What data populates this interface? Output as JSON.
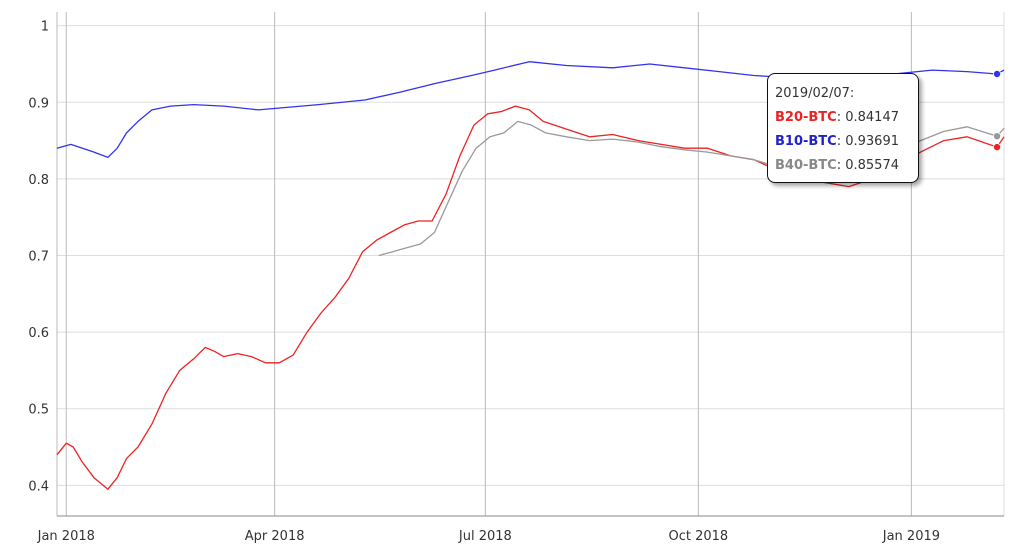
{
  "chart_data": {
    "type": "line",
    "x_tick_labels": [
      "Jan 2018",
      "Apr 2018",
      "Jul 2018",
      "Oct 2018",
      "Jan 2019"
    ],
    "x_ticks": [
      "2018-01-01",
      "2018-04-01",
      "2018-07-01",
      "2018-10-01",
      "2019-01-01"
    ],
    "xlim": [
      "2017-12-28",
      "2019-02-10"
    ],
    "y_tick_labels": [
      "0.4",
      "0.5",
      "0.6",
      "0.7",
      "0.8",
      "0.9",
      "1"
    ],
    "y_ticks": [
      0.4,
      0.5,
      0.6,
      0.7,
      0.8,
      0.9,
      1.0
    ],
    "ylim": [
      0.36,
      1.01
    ],
    "grid": true,
    "legend": "none",
    "series": [
      {
        "name": "B10-BTC",
        "color": "#3333ee",
        "points": [
          [
            "2017-12-28",
            0.84
          ],
          [
            "2018-01-03",
            0.845
          ],
          [
            "2018-01-08",
            0.84
          ],
          [
            "2018-01-13",
            0.835
          ],
          [
            "2018-01-19",
            0.828
          ],
          [
            "2018-01-23",
            0.84
          ],
          [
            "2018-01-27",
            0.86
          ],
          [
            "2018-02-01",
            0.875
          ],
          [
            "2018-02-07",
            0.89
          ],
          [
            "2018-02-15",
            0.895
          ],
          [
            "2018-02-25",
            0.897
          ],
          [
            "2018-03-10",
            0.895
          ],
          [
            "2018-03-25",
            0.89
          ],
          [
            "2018-04-05",
            0.893
          ],
          [
            "2018-04-20",
            0.897
          ],
          [
            "2018-05-10",
            0.903
          ],
          [
            "2018-05-25",
            0.913
          ],
          [
            "2018-06-10",
            0.925
          ],
          [
            "2018-06-25",
            0.935
          ],
          [
            "2018-07-05",
            0.942
          ],
          [
            "2018-07-20",
            0.953
          ],
          [
            "2018-08-05",
            0.948
          ],
          [
            "2018-08-25",
            0.945
          ],
          [
            "2018-09-10",
            0.95
          ],
          [
            "2018-09-25",
            0.945
          ],
          [
            "2018-10-10",
            0.94
          ],
          [
            "2018-10-25",
            0.935
          ],
          [
            "2018-11-10",
            0.932
          ],
          [
            "2018-11-25",
            0.93
          ],
          [
            "2018-12-10",
            0.933
          ],
          [
            "2018-12-25",
            0.937
          ],
          [
            "2019-01-10",
            0.942
          ],
          [
            "2019-01-25",
            0.94
          ],
          [
            "2019-02-07",
            0.93691
          ],
          [
            "2019-02-10",
            0.942
          ]
        ]
      },
      {
        "name": "B20-BTC",
        "color": "#ee2222",
        "points": [
          [
            "2017-12-28",
            0.44
          ],
          [
            "2018-01-01",
            0.455
          ],
          [
            "2018-01-04",
            0.45
          ],
          [
            "2018-01-08",
            0.43
          ],
          [
            "2018-01-13",
            0.41
          ],
          [
            "2018-01-19",
            0.395
          ],
          [
            "2018-01-23",
            0.41
          ],
          [
            "2018-01-27",
            0.435
          ],
          [
            "2018-02-01",
            0.45
          ],
          [
            "2018-02-07",
            0.48
          ],
          [
            "2018-02-13",
            0.52
          ],
          [
            "2018-02-19",
            0.55
          ],
          [
            "2018-02-25",
            0.565
          ],
          [
            "2018-03-02",
            0.58
          ],
          [
            "2018-03-06",
            0.575
          ],
          [
            "2018-03-10",
            0.568
          ],
          [
            "2018-03-16",
            0.572
          ],
          [
            "2018-03-22",
            0.568
          ],
          [
            "2018-03-28",
            0.56
          ],
          [
            "2018-04-03",
            0.56
          ],
          [
            "2018-04-09",
            0.57
          ],
          [
            "2018-04-15",
            0.6
          ],
          [
            "2018-04-21",
            0.625
          ],
          [
            "2018-04-27",
            0.645
          ],
          [
            "2018-05-03",
            0.67
          ],
          [
            "2018-05-09",
            0.705
          ],
          [
            "2018-05-15",
            0.72
          ],
          [
            "2018-05-21",
            0.73
          ],
          [
            "2018-05-27",
            0.74
          ],
          [
            "2018-06-02",
            0.745
          ],
          [
            "2018-06-08",
            0.745
          ],
          [
            "2018-06-14",
            0.78
          ],
          [
            "2018-06-20",
            0.83
          ],
          [
            "2018-06-26",
            0.87
          ],
          [
            "2018-07-02",
            0.885
          ],
          [
            "2018-07-08",
            0.888
          ],
          [
            "2018-07-14",
            0.895
          ],
          [
            "2018-07-20",
            0.89
          ],
          [
            "2018-07-26",
            0.875
          ],
          [
            "2018-08-05",
            0.865
          ],
          [
            "2018-08-15",
            0.855
          ],
          [
            "2018-08-25",
            0.858
          ],
          [
            "2018-09-05",
            0.85
          ],
          [
            "2018-09-15",
            0.845
          ],
          [
            "2018-09-25",
            0.84
          ],
          [
            "2018-10-05",
            0.84
          ],
          [
            "2018-10-15",
            0.83
          ],
          [
            "2018-10-25",
            0.825
          ],
          [
            "2018-11-05",
            0.81
          ],
          [
            "2018-11-15",
            0.8
          ],
          [
            "2018-11-25",
            0.795
          ],
          [
            "2018-12-05",
            0.79
          ],
          [
            "2018-12-15",
            0.8
          ],
          [
            "2018-12-25",
            0.82
          ],
          [
            "2019-01-05",
            0.835
          ],
          [
            "2019-01-15",
            0.85
          ],
          [
            "2019-01-25",
            0.855
          ],
          [
            "2019-02-07",
            0.84147
          ],
          [
            "2019-02-10",
            0.855
          ]
        ]
      },
      {
        "name": "B40-BTC",
        "color": "#999999",
        "points": [
          [
            "2018-05-16",
            0.7
          ],
          [
            "2018-05-22",
            0.705
          ],
          [
            "2018-05-28",
            0.71
          ],
          [
            "2018-06-03",
            0.715
          ],
          [
            "2018-06-09",
            0.73
          ],
          [
            "2018-06-15",
            0.77
          ],
          [
            "2018-06-21",
            0.81
          ],
          [
            "2018-06-27",
            0.84
          ],
          [
            "2018-07-03",
            0.855
          ],
          [
            "2018-07-09",
            0.86
          ],
          [
            "2018-07-15",
            0.875
          ],
          [
            "2018-07-21",
            0.87
          ],
          [
            "2018-07-27",
            0.86
          ],
          [
            "2018-08-05",
            0.855
          ],
          [
            "2018-08-15",
            0.85
          ],
          [
            "2018-08-25",
            0.852
          ],
          [
            "2018-09-05",
            0.848
          ],
          [
            "2018-09-15",
            0.842
          ],
          [
            "2018-09-25",
            0.838
          ],
          [
            "2018-10-05",
            0.835
          ],
          [
            "2018-10-15",
            0.83
          ],
          [
            "2018-10-25",
            0.825
          ],
          [
            "2018-11-05",
            0.815
          ],
          [
            "2018-11-15",
            0.805
          ],
          [
            "2018-11-25",
            0.8
          ],
          [
            "2018-12-05",
            0.8
          ],
          [
            "2018-12-15",
            0.812
          ],
          [
            "2018-12-25",
            0.83
          ],
          [
            "2019-01-05",
            0.85
          ],
          [
            "2019-01-15",
            0.862
          ],
          [
            "2019-01-25",
            0.868
          ],
          [
            "2019-02-07",
            0.85574
          ],
          [
            "2019-02-10",
            0.866
          ]
        ]
      }
    ],
    "hover_date": "2019-02-07"
  },
  "tooltip": {
    "date": "2019/02/07:",
    "rows": [
      {
        "name": "B20-BTC",
        "value": "0.84147",
        "color": "#ee2222"
      },
      {
        "name": "B10-BTC",
        "value": "0.93691",
        "color": "#2222cc"
      },
      {
        "name": "B40-BTC",
        "value": "0.85574",
        "color": "#888888"
      }
    ]
  }
}
